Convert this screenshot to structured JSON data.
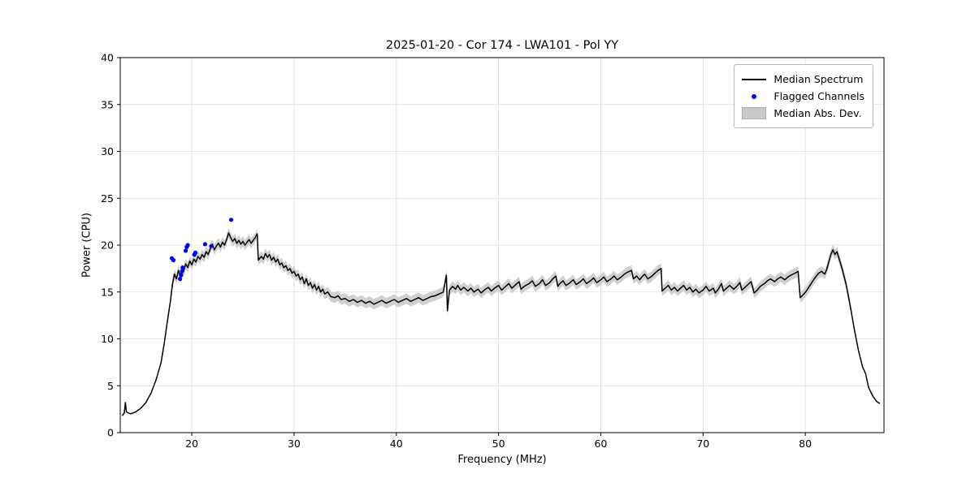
{
  "chart_data": {
    "type": "line",
    "title": "2025-01-20 - Cor 174 - LWA101 - Pol YY",
    "xlabel": "Frequency (MHz)",
    "ylabel": "Power (CPU)",
    "xlim": [
      13.0,
      87.7
    ],
    "ylim": [
      0,
      40
    ],
    "xticks": [
      20,
      30,
      40,
      50,
      60,
      70,
      80
    ],
    "yticks": [
      0,
      5,
      10,
      15,
      20,
      25,
      30,
      35,
      40
    ],
    "grid": true,
    "colors": {
      "line": "#000000",
      "flagged": "#0000ff",
      "band": "#c8c8c8",
      "grid": "#dddddd",
      "frame": "#000000"
    },
    "legend": {
      "position": "upper right",
      "entries": [
        "Median Spectrum",
        "Flagged Channels",
        "Median Abs. Dev."
      ]
    },
    "series": [
      {
        "name": "Median Spectrum",
        "kind": "line",
        "color": "#000000",
        "points": [
          [
            13.2,
            1.8
          ],
          [
            13.4,
            2.1
          ],
          [
            13.5,
            3.2
          ],
          [
            13.6,
            2.2
          ],
          [
            14.0,
            2.0
          ],
          [
            14.5,
            2.2
          ],
          [
            15.0,
            2.6
          ],
          [
            15.5,
            3.2
          ],
          [
            16.0,
            4.2
          ],
          [
            16.5,
            5.6
          ],
          [
            17.0,
            7.5
          ],
          [
            17.3,
            9.5
          ],
          [
            17.6,
            11.8
          ],
          [
            17.9,
            14.0
          ],
          [
            18.1,
            15.8
          ],
          [
            18.3,
            16.9
          ],
          [
            18.5,
            16.4
          ],
          [
            18.7,
            17.3
          ],
          [
            18.9,
            16.6
          ],
          [
            19.0,
            17.5
          ],
          [
            19.2,
            17.2
          ],
          [
            19.4,
            18.0
          ],
          [
            19.6,
            17.6
          ],
          [
            19.8,
            18.3
          ],
          [
            20.0,
            17.9
          ],
          [
            20.2,
            18.5
          ],
          [
            20.4,
            18.2
          ],
          [
            20.6,
            18.8
          ],
          [
            20.8,
            18.5
          ],
          [
            21.0,
            19.0
          ],
          [
            21.2,
            18.7
          ],
          [
            21.4,
            19.3
          ],
          [
            21.6,
            19.0
          ],
          [
            21.8,
            19.6
          ],
          [
            22.0,
            20.1
          ],
          [
            22.2,
            19.5
          ],
          [
            22.4,
            19.9
          ],
          [
            22.6,
            20.2
          ],
          [
            22.8,
            19.8
          ],
          [
            23.0,
            20.3
          ],
          [
            23.2,
            20.0
          ],
          [
            23.4,
            20.6
          ],
          [
            23.6,
            21.3
          ],
          [
            23.8,
            20.8
          ],
          [
            24.0,
            20.4
          ],
          [
            24.2,
            20.7
          ],
          [
            24.4,
            20.2
          ],
          [
            24.6,
            20.5
          ],
          [
            24.8,
            20.1
          ],
          [
            25.0,
            20.4
          ],
          [
            25.2,
            20.0
          ],
          [
            25.4,
            20.3
          ],
          [
            25.6,
            20.6
          ],
          [
            25.8,
            20.2
          ],
          [
            26.0,
            20.5
          ],
          [
            26.2,
            20.8
          ],
          [
            26.4,
            21.2
          ],
          [
            26.5,
            18.4
          ],
          [
            26.8,
            18.8
          ],
          [
            27.0,
            18.5
          ],
          [
            27.2,
            19.1
          ],
          [
            27.4,
            18.7
          ],
          [
            27.6,
            19.0
          ],
          [
            27.8,
            18.4
          ],
          [
            28.0,
            18.7
          ],
          [
            28.2,
            18.2
          ],
          [
            28.4,
            18.5
          ],
          [
            28.6,
            17.9
          ],
          [
            28.8,
            18.1
          ],
          [
            29.0,
            17.6
          ],
          [
            29.2,
            17.8
          ],
          [
            29.4,
            17.3
          ],
          [
            29.6,
            17.5
          ],
          [
            29.8,
            17.0
          ],
          [
            30.0,
            17.2
          ],
          [
            30.2,
            16.7
          ],
          [
            30.4,
            16.9
          ],
          [
            30.6,
            16.3
          ],
          [
            30.8,
            16.6
          ],
          [
            31.0,
            15.9
          ],
          [
            31.2,
            16.4
          ],
          [
            31.4,
            15.7
          ],
          [
            31.6,
            16.0
          ],
          [
            31.8,
            15.4
          ],
          [
            32.0,
            15.8
          ],
          [
            32.2,
            15.2
          ],
          [
            32.4,
            15.6
          ],
          [
            32.6,
            15.0
          ],
          [
            32.8,
            15.3
          ],
          [
            33.0,
            14.8
          ],
          [
            33.3,
            15.0
          ],
          [
            33.6,
            14.5
          ],
          [
            34.0,
            14.4
          ],
          [
            34.3,
            14.6
          ],
          [
            34.6,
            14.2
          ],
          [
            35.0,
            14.3
          ],
          [
            35.4,
            14.0
          ],
          [
            35.8,
            14.2
          ],
          [
            36.2,
            13.9
          ],
          [
            36.6,
            14.1
          ],
          [
            37.0,
            13.8
          ],
          [
            37.4,
            14.0
          ],
          [
            37.8,
            13.7
          ],
          [
            38.2,
            13.9
          ],
          [
            38.6,
            14.1
          ],
          [
            39.0,
            13.8
          ],
          [
            39.4,
            14.0
          ],
          [
            39.8,
            14.2
          ],
          [
            40.2,
            13.9
          ],
          [
            40.6,
            14.1
          ],
          [
            41.0,
            14.3
          ],
          [
            41.4,
            14.0
          ],
          [
            41.8,
            14.2
          ],
          [
            42.2,
            14.4
          ],
          [
            42.6,
            14.1
          ],
          [
            43.0,
            14.3
          ],
          [
            43.4,
            14.5
          ],
          [
            43.8,
            14.6
          ],
          [
            44.2,
            14.8
          ],
          [
            44.6,
            15.0
          ],
          [
            44.9,
            16.8
          ],
          [
            45.0,
            13.0
          ],
          [
            45.2,
            15.2
          ],
          [
            45.5,
            15.6
          ],
          [
            45.8,
            15.3
          ],
          [
            46.0,
            15.7
          ],
          [
            46.3,
            15.2
          ],
          [
            46.6,
            15.5
          ],
          [
            47.0,
            15.1
          ],
          [
            47.3,
            15.4
          ],
          [
            47.6,
            15.0
          ],
          [
            48.0,
            15.3
          ],
          [
            48.3,
            14.9
          ],
          [
            48.6,
            15.2
          ],
          [
            49.0,
            15.5
          ],
          [
            49.3,
            15.1
          ],
          [
            49.6,
            15.4
          ],
          [
            50.0,
            15.7
          ],
          [
            50.3,
            15.2
          ],
          [
            50.6,
            15.5
          ],
          [
            51.0,
            15.9
          ],
          [
            51.3,
            15.4
          ],
          [
            51.6,
            15.7
          ],
          [
            52.0,
            16.1
          ],
          [
            52.2,
            15.3
          ],
          [
            52.5,
            15.6
          ],
          [
            53.0,
            15.9
          ],
          [
            53.3,
            16.2
          ],
          [
            53.6,
            15.6
          ],
          [
            54.0,
            15.9
          ],
          [
            54.3,
            16.3
          ],
          [
            54.6,
            15.7
          ],
          [
            55.0,
            16.0
          ],
          [
            55.3,
            16.4
          ],
          [
            55.6,
            16.7
          ],
          [
            55.8,
            15.6
          ],
          [
            56.0,
            15.9
          ],
          [
            56.3,
            16.2
          ],
          [
            56.6,
            15.7
          ],
          [
            57.0,
            16.0
          ],
          [
            57.3,
            16.3
          ],
          [
            57.6,
            15.8
          ],
          [
            58.0,
            16.1
          ],
          [
            58.3,
            16.4
          ],
          [
            58.6,
            15.9
          ],
          [
            59.0,
            16.2
          ],
          [
            59.3,
            16.5
          ],
          [
            59.6,
            16.0
          ],
          [
            60.0,
            16.3
          ],
          [
            60.3,
            16.6
          ],
          [
            60.6,
            16.1
          ],
          [
            61.0,
            16.4
          ],
          [
            61.3,
            16.7
          ],
          [
            61.6,
            16.3
          ],
          [
            62.0,
            16.6
          ],
          [
            62.3,
            16.9
          ],
          [
            62.6,
            17.1
          ],
          [
            63.0,
            17.3
          ],
          [
            63.2,
            16.4
          ],
          [
            63.5,
            16.7
          ],
          [
            63.8,
            16.3
          ],
          [
            64.0,
            16.6
          ],
          [
            64.3,
            16.9
          ],
          [
            64.6,
            16.4
          ],
          [
            65.0,
            16.7
          ],
          [
            65.3,
            17.0
          ],
          [
            65.6,
            17.3
          ],
          [
            65.9,
            17.5
          ],
          [
            66.0,
            15.1
          ],
          [
            66.3,
            15.4
          ],
          [
            66.6,
            15.7
          ],
          [
            66.9,
            15.2
          ],
          [
            67.2,
            15.5
          ],
          [
            67.5,
            15.1
          ],
          [
            67.8,
            15.4
          ],
          [
            68.1,
            15.7
          ],
          [
            68.4,
            15.2
          ],
          [
            68.7,
            15.5
          ],
          [
            69.0,
            15.0
          ],
          [
            69.3,
            15.3
          ],
          [
            69.6,
            14.9
          ],
          [
            70.0,
            15.2
          ],
          [
            70.3,
            15.6
          ],
          [
            70.6,
            15.1
          ],
          [
            71.0,
            15.4
          ],
          [
            71.2,
            14.9
          ],
          [
            71.5,
            15.3
          ],
          [
            71.8,
            15.9
          ],
          [
            72.0,
            15.1
          ],
          [
            72.3,
            15.4
          ],
          [
            72.6,
            15.7
          ],
          [
            73.0,
            15.3
          ],
          [
            73.3,
            15.6
          ],
          [
            73.6,
            16.0
          ],
          [
            73.8,
            15.2
          ],
          [
            74.1,
            15.5
          ],
          [
            74.4,
            15.8
          ],
          [
            74.7,
            16.1
          ],
          [
            75.0,
            14.9
          ],
          [
            75.3,
            15.2
          ],
          [
            75.6,
            15.6
          ],
          [
            76.0,
            15.9
          ],
          [
            76.3,
            16.2
          ],
          [
            76.6,
            16.4
          ],
          [
            77.0,
            16.1
          ],
          [
            77.3,
            16.4
          ],
          [
            77.6,
            16.6
          ],
          [
            78.0,
            16.3
          ],
          [
            78.3,
            16.6
          ],
          [
            78.6,
            16.8
          ],
          [
            79.0,
            17.0
          ],
          [
            79.3,
            17.2
          ],
          [
            79.5,
            14.4
          ],
          [
            79.8,
            14.7
          ],
          [
            80.1,
            15.1
          ],
          [
            80.4,
            15.6
          ],
          [
            80.7,
            16.1
          ],
          [
            81.0,
            16.6
          ],
          [
            81.3,
            17.0
          ],
          [
            81.6,
            17.2
          ],
          [
            81.9,
            16.9
          ],
          [
            82.1,
            17.4
          ],
          [
            82.3,
            18.2
          ],
          [
            82.5,
            19.0
          ],
          [
            82.7,
            19.5
          ],
          [
            82.9,
            19.0
          ],
          [
            83.1,
            19.3
          ],
          [
            83.3,
            18.6
          ],
          [
            83.6,
            17.5
          ],
          [
            84.0,
            15.8
          ],
          [
            84.4,
            13.5
          ],
          [
            84.8,
            11.0
          ],
          [
            85.2,
            8.8
          ],
          [
            85.6,
            7.0
          ],
          [
            85.9,
            6.3
          ],
          [
            86.2,
            4.8
          ],
          [
            86.6,
            3.9
          ],
          [
            87.0,
            3.3
          ],
          [
            87.3,
            3.1
          ]
        ]
      },
      {
        "name": "Flagged Channels",
        "kind": "scatter",
        "color": "#0000ff",
        "points": [
          [
            18.05,
            18.6
          ],
          [
            18.2,
            18.4
          ],
          [
            18.85,
            16.4
          ],
          [
            18.95,
            16.8
          ],
          [
            19.05,
            17.2
          ],
          [
            19.1,
            17.6
          ],
          [
            19.4,
            19.4
          ],
          [
            19.5,
            19.8
          ],
          [
            19.6,
            20.0
          ],
          [
            20.25,
            19.0
          ],
          [
            20.35,
            19.2
          ],
          [
            21.3,
            20.1
          ],
          [
            21.9,
            19.9
          ],
          [
            23.85,
            22.7
          ]
        ]
      },
      {
        "name": "Median Abs. Dev.",
        "kind": "band",
        "color": "#c8c8c8",
        "halfwidth": 0.55,
        "x_range": [
          17.8,
          84.6
        ]
      }
    ]
  }
}
